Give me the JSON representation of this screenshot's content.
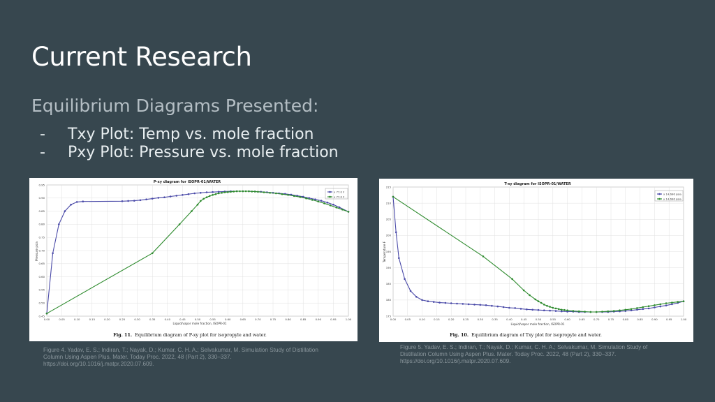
{
  "slide": {
    "title": "Current Research",
    "subtitle": "Equilibrium Diagrams Presented:",
    "bullets": [
      {
        "dash": "-",
        "text": "Txy Plot: Temp vs. mole fraction"
      },
      {
        "dash": "-",
        "text": "Pxy Plot: Pressure vs. mole fraction"
      }
    ]
  },
  "figures": [
    {
      "caption_lines": [
        "Figure 4. Yadav, E. S.; Indiran, T.; Nayak, D.; Kumar, C. H. A.; Selvakumar, M. Simulation Study of Distillation",
        "Column Using Aspen Plus. Mater. Today Proc. 2022, 48 (Part 2), 330–337.",
        "https://doi.org/10.1016/j.matpr.2020.07.609."
      ],
      "fig_label": "Fig. 11.",
      "fig_text": "Equilibrium diagram of P-xy plot for isopropyle and water."
    },
    {
      "caption_lines": [
        "Figure 5. Yadav, E. S.; Indiran, T.; Nayak, D.; Kumar, C. H. A.; Selvakumar, M. Simulation Study of",
        "Distillation Column Using Aspen Plus. Mater. Today Proc. 2022, 48 (Part 2), 330–337.",
        "https://doi.org/10.1016/j.matpr.2020.07.609."
      ],
      "fig_label": "Fig. 10.",
      "fig_text": "Equilibrium diagram of Txy plot for isopropyle and water."
    }
  ],
  "chart_data": [
    {
      "type": "line",
      "title": "P-xy diagram for ISOPR-01/WATER",
      "xlabel": "Liquid/vapor mole fraction, ISOPR-01",
      "ylabel": "Pressure psia",
      "xlim": [
        0,
        1
      ],
      "ylim": [
        0.45,
        0.95
      ],
      "xticks": [
        "0.00",
        "0.05",
        "0.10",
        "0.15",
        "0.20",
        "0.25",
        "0.30",
        "0.35",
        "0.40",
        "0.45",
        "0.50",
        "0.55",
        "0.60",
        "0.65",
        "0.70",
        "0.75",
        "0.80",
        "0.85",
        "0.90",
        "0.95",
        "1.00"
      ],
      "yticks": [
        "0.45",
        "0.50",
        "0.55",
        "0.60",
        "0.65",
        "0.70",
        "0.75",
        "0.80",
        "0.85",
        "0.90",
        "0.95"
      ],
      "grid": true,
      "legend": "top-right",
      "colors": {
        "x": "#4a4aa8",
        "y": "#2e8b2e"
      },
      "series": [
        {
          "name": "x  77.0 F",
          "x": [
            0,
            0.02,
            0.04,
            0.06,
            0.08,
            0.1,
            0.12,
            0.25,
            0.27,
            0.29,
            0.31,
            0.33,
            0.35,
            0.37,
            0.39,
            0.41,
            0.43,
            0.45,
            0.47,
            0.49,
            0.51,
            0.53,
            0.55,
            0.57,
            0.59,
            0.61,
            0.63,
            0.65,
            0.67,
            0.69,
            0.71,
            0.73,
            0.75,
            0.77,
            0.79,
            0.81,
            0.83,
            0.85,
            0.87,
            0.89,
            0.91,
            0.93,
            0.95,
            0.97,
            1.0
          ],
          "y": [
            0.46,
            0.69,
            0.8,
            0.85,
            0.875,
            0.885,
            0.887,
            0.888,
            0.889,
            0.89,
            0.892,
            0.895,
            0.898,
            0.901,
            0.903,
            0.906,
            0.909,
            0.912,
            0.915,
            0.918,
            0.92,
            0.922,
            0.923,
            0.924,
            0.925,
            0.926,
            0.926,
            0.926,
            0.926,
            0.925,
            0.924,
            0.922,
            0.92,
            0.918,
            0.916,
            0.913,
            0.909,
            0.905,
            0.9,
            0.895,
            0.89,
            0.883,
            0.875,
            0.865,
            0.848
          ]
        },
        {
          "name": "y  77.0 F",
          "x": [
            0,
            0.35,
            0.44,
            0.48,
            0.5,
            0.51,
            0.52,
            0.53,
            0.54,
            0.55,
            0.56,
            0.57,
            0.58,
            0.59,
            0.6,
            0.61,
            0.62,
            0.63,
            0.64,
            0.65,
            0.66,
            0.67,
            0.68,
            0.69,
            0.7,
            0.72,
            0.74,
            0.76,
            0.78,
            0.8,
            0.82,
            0.84,
            0.86,
            0.88,
            0.9,
            0.92,
            0.94,
            0.96,
            0.98,
            1.0
          ],
          "y": [
            0.46,
            0.69,
            0.8,
            0.85,
            0.875,
            0.889,
            0.897,
            0.903,
            0.908,
            0.912,
            0.915,
            0.918,
            0.92,
            0.922,
            0.923,
            0.924,
            0.925,
            0.926,
            0.926,
            0.926,
            0.926,
            0.926,
            0.925,
            0.925,
            0.924,
            0.922,
            0.92,
            0.918,
            0.915,
            0.912,
            0.908,
            0.904,
            0.899,
            0.893,
            0.887,
            0.88,
            0.872,
            0.864,
            0.856,
            0.848
          ]
        }
      ]
    },
    {
      "type": "line",
      "title": "T-xy diagram for ISOPR-01/WATER",
      "xlabel": "Liquid/vapor mole fraction, ISOPR-01",
      "ylabel": "Temperature F",
      "xlim": [
        0,
        1
      ],
      "ylim": [
        175,
        215
      ],
      "xticks": [
        "0.00",
        "0.05",
        "0.10",
        "0.15",
        "0.20",
        "0.25",
        "0.30",
        "0.35",
        "0.40",
        "0.45",
        "0.50",
        "0.55",
        "0.60",
        "0.65",
        "0.70",
        "0.75",
        "0.80",
        "0.85",
        "0.90",
        "0.95",
        "1.00"
      ],
      "yticks": [
        "175",
        "180",
        "185",
        "190",
        "195",
        "200",
        "205",
        "210",
        "215"
      ],
      "grid": true,
      "legend": "top-right",
      "colors": {
        "x": "#4a4aa8",
        "y": "#2e8b2e"
      },
      "series": [
        {
          "name": "x  14.696 psia",
          "x": [
            0,
            0.01,
            0.02,
            0.04,
            0.06,
            0.08,
            0.1,
            0.12,
            0.14,
            0.16,
            0.18,
            0.2,
            0.22,
            0.24,
            0.26,
            0.28,
            0.3,
            0.32,
            0.34,
            0.36,
            0.38,
            0.4,
            0.42,
            0.44,
            0.46,
            0.48,
            0.5,
            0.52,
            0.54,
            0.56,
            0.58,
            0.6,
            0.62,
            0.64,
            0.66,
            0.68,
            0.7,
            0.72,
            0.74,
            0.76,
            0.78,
            0.8,
            0.82,
            0.84,
            0.86,
            0.88,
            0.9,
            0.92,
            0.94,
            0.96,
            0.98,
            1.0
          ],
          "y": [
            212,
            201,
            193,
            186.5,
            182.8,
            181,
            180,
            179.6,
            179.4,
            179.2,
            179.1,
            179,
            178.9,
            178.8,
            178.7,
            178.6,
            178.5,
            178.4,
            178.2,
            178,
            177.8,
            177.6,
            177.5,
            177.3,
            177.1,
            177,
            176.9,
            176.8,
            176.7,
            176.6,
            176.5,
            176.4,
            176.4,
            176.3,
            176.3,
            176.3,
            176.3,
            176.3,
            176.3,
            176.4,
            176.5,
            176.6,
            176.8,
            177,
            177.2,
            177.4,
            177.7,
            178,
            178.3,
            178.7,
            179.1,
            179.6
          ]
        },
        {
          "name": "y  14.696 psia",
          "x": [
            0,
            0.31,
            0.41,
            0.45,
            0.47,
            0.49,
            0.5,
            0.51,
            0.52,
            0.53,
            0.54,
            0.55,
            0.56,
            0.57,
            0.58,
            0.59,
            0.6,
            0.62,
            0.64,
            0.66,
            0.68,
            0.7,
            0.72,
            0.74,
            0.76,
            0.78,
            0.8,
            0.82,
            0.84,
            0.86,
            0.88,
            0.9,
            0.92,
            0.94,
            0.96,
            0.98,
            1.0
          ],
          "y": [
            212,
            193.5,
            186.5,
            183,
            181.5,
            180.2,
            179.6,
            179.1,
            178.6,
            178.2,
            177.9,
            177.6,
            177.4,
            177.2,
            177,
            176.9,
            176.8,
            176.6,
            176.5,
            176.4,
            176.3,
            176.3,
            176.4,
            176.5,
            176.6,
            176.8,
            177,
            177.2,
            177.5,
            177.8,
            178.1,
            178.4,
            178.7,
            179,
            179.2,
            179.4,
            179.6
          ]
        }
      ]
    }
  ]
}
